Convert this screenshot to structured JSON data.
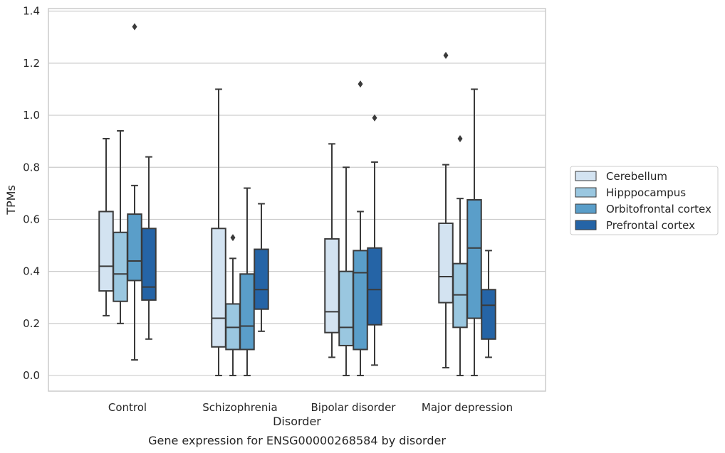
{
  "caption": "Gene expression for ENSG00000268584 by disorder",
  "chart_data": {
    "type": "box",
    "xlabel": "Disorder",
    "ylabel": "TPMs",
    "categories": [
      "Control",
      "Schizophrenia",
      "Bipolar disorder",
      "Major depression"
    ],
    "ylim": [
      -0.06,
      1.41
    ],
    "yticks": [
      0.0,
      0.2,
      0.4,
      0.6,
      0.8,
      1.0,
      1.2,
      1.4
    ],
    "ytick_labels": [
      "0.0",
      "0.2",
      "0.4",
      "0.6",
      "0.8",
      "1.0",
      "1.2",
      "1.4"
    ],
    "grid": "horizontal",
    "legend_position": "right",
    "series": [
      {
        "name": "Cerebellum",
        "color": "#d3e3f1",
        "boxes": [
          {
            "whislo": 0.23,
            "q1": 0.325,
            "med": 0.42,
            "q3": 0.63,
            "whishi": 0.91,
            "fliers": []
          },
          {
            "whislo": 0.0,
            "q1": 0.11,
            "med": 0.22,
            "q3": 0.565,
            "whishi": 1.1,
            "fliers": []
          },
          {
            "whislo": 0.07,
            "q1": 0.165,
            "med": 0.245,
            "q3": 0.525,
            "whishi": 0.89,
            "fliers": []
          },
          {
            "whislo": 0.03,
            "q1": 0.28,
            "med": 0.38,
            "q3": 0.585,
            "whishi": 0.81,
            "fliers": [
              1.23
            ]
          }
        ]
      },
      {
        "name": "Hipppocampus",
        "color": "#9ac7e0",
        "boxes": [
          {
            "whislo": 0.2,
            "q1": 0.285,
            "med": 0.39,
            "q3": 0.55,
            "whishi": 0.94,
            "fliers": []
          },
          {
            "whislo": 0.0,
            "q1": 0.1,
            "med": 0.185,
            "q3": 0.275,
            "whishi": 0.45,
            "fliers": [
              0.53
            ]
          },
          {
            "whislo": 0.0,
            "q1": 0.115,
            "med": 0.185,
            "q3": 0.4,
            "whishi": 0.8,
            "fliers": []
          },
          {
            "whislo": 0.0,
            "q1": 0.185,
            "med": 0.31,
            "q3": 0.43,
            "whishi": 0.68,
            "fliers": [
              0.91
            ]
          }
        ]
      },
      {
        "name": "Orbitofrontal cortex",
        "color": "#5a9ec9",
        "boxes": [
          {
            "whislo": 0.06,
            "q1": 0.365,
            "med": 0.44,
            "q3": 0.62,
            "whishi": 0.73,
            "fliers": [
              1.34
            ]
          },
          {
            "whislo": 0.0,
            "q1": 0.1,
            "med": 0.19,
            "q3": 0.39,
            "whishi": 0.72,
            "fliers": []
          },
          {
            "whislo": 0.0,
            "q1": 0.1,
            "med": 0.395,
            "q3": 0.48,
            "whishi": 0.63,
            "fliers": [
              1.12
            ]
          },
          {
            "whislo": 0.0,
            "q1": 0.22,
            "med": 0.49,
            "q3": 0.675,
            "whishi": 1.1,
            "fliers": []
          }
        ]
      },
      {
        "name": "Prefrontal cortex",
        "color": "#2564a6",
        "boxes": [
          {
            "whislo": 0.14,
            "q1": 0.29,
            "med": 0.34,
            "q3": 0.565,
            "whishi": 0.84,
            "fliers": []
          },
          {
            "whislo": 0.17,
            "q1": 0.255,
            "med": 0.33,
            "q3": 0.485,
            "whishi": 0.66,
            "fliers": []
          },
          {
            "whislo": 0.04,
            "q1": 0.195,
            "med": 0.33,
            "q3": 0.49,
            "whishi": 0.82,
            "fliers": [
              0.99
            ]
          },
          {
            "whislo": 0.07,
            "q1": 0.14,
            "med": 0.27,
            "q3": 0.33,
            "whishi": 0.48,
            "fliers": []
          }
        ]
      }
    ]
  }
}
